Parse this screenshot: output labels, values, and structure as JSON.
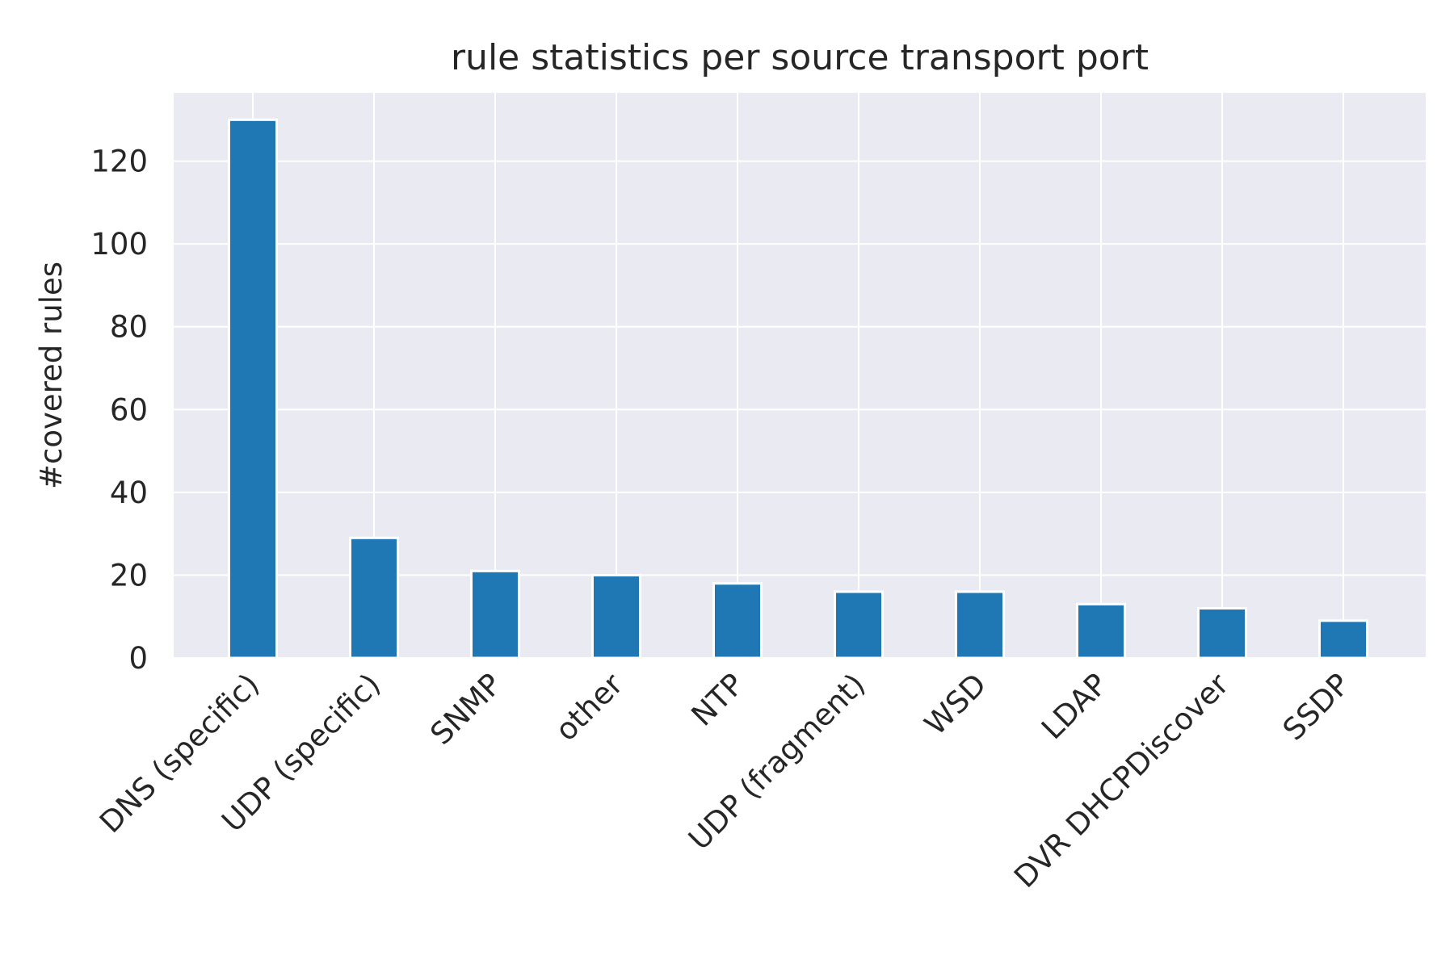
{
  "chart_data": {
    "type": "bar",
    "title": "rule statistics per source transport port",
    "xlabel": "",
    "ylabel": "#covered rules",
    "categories": [
      "DNS (specific)",
      "UDP (specific)",
      "SNMP",
      "other",
      "NTP",
      "UDP (fragment)",
      "WSD",
      "LDAP",
      "DVR DHCPDiscover",
      "SSDP"
    ],
    "values": [
      130,
      29,
      21,
      20,
      18,
      16,
      16,
      13,
      12,
      9
    ],
    "ylim": [
      0,
      136.5
    ],
    "yticks": [
      0,
      20,
      40,
      60,
      80,
      100,
      120
    ],
    "grid": true,
    "bar_color": "#1f77b4",
    "background_color": "#eaeaf2",
    "grid_color": "#ffffff"
  }
}
